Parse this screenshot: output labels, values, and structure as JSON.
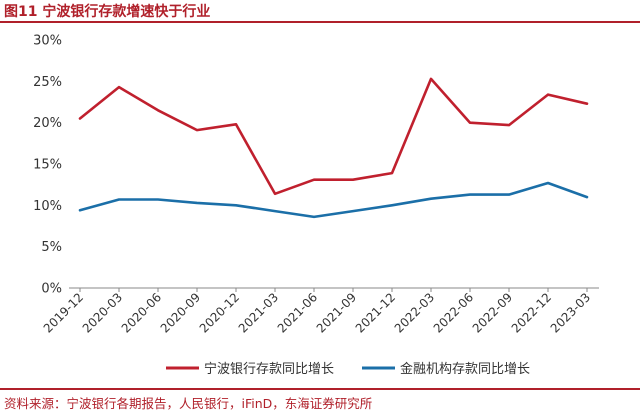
{
  "header": {
    "title": "图11  宁波银行存款增速快于行业"
  },
  "footer": {
    "source": "资料来源：宁波银行各期报告，人民银行，iFinD，东海证券研究所"
  },
  "colors": {
    "accent": "#b0202a",
    "series1": "#c0202e",
    "series2": "#1b6fa8"
  },
  "chart_data": {
    "type": "line",
    "categories": [
      "2019-12",
      "2020-03",
      "2020-06",
      "2020-09",
      "2020-12",
      "2021-03",
      "2021-06",
      "2021-09",
      "2021-12",
      "2022-03",
      "2022-06",
      "2022-09",
      "2022-12",
      "2023-03"
    ],
    "series": [
      {
        "name": "宁波银行存款同比增长",
        "values": [
          20.5,
          24.3,
          21.5,
          19.1,
          19.8,
          11.4,
          13.1,
          13.1,
          13.9,
          25.3,
          20.0,
          19.7,
          23.4,
          22.3
        ]
      },
      {
        "name": "金融机构存款同比增长",
        "values": [
          9.4,
          10.7,
          10.7,
          10.3,
          10.0,
          9.3,
          8.6,
          9.3,
          10.0,
          10.8,
          11.3,
          11.3,
          12.7,
          11.0
        ]
      }
    ],
    "yticks": [
      "0%",
      "5%",
      "10%",
      "15%",
      "20%",
      "25%",
      "30%"
    ],
    "ylim": [
      0,
      30
    ],
    "grid": false,
    "legend": "bottom"
  }
}
